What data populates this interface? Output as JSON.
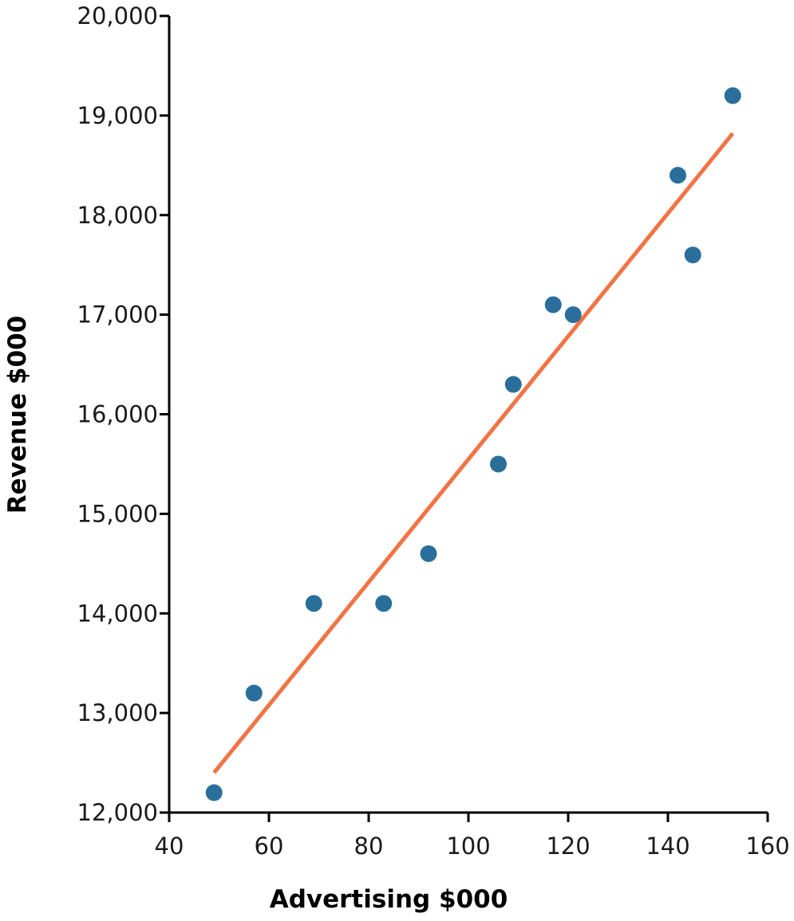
{
  "chart_data": {
    "type": "scatter",
    "xlabel": "Advertising $000",
    "ylabel": "Revenue $000",
    "xlim": [
      40,
      160
    ],
    "ylim": [
      12000,
      20000
    ],
    "x_ticks": [
      40,
      60,
      80,
      100,
      120,
      140,
      160
    ],
    "x_tick_labels": [
      "40",
      "60",
      "80",
      "100",
      "120",
      "140",
      "160"
    ],
    "y_ticks": [
      12000,
      13000,
      14000,
      15000,
      16000,
      17000,
      18000,
      19000,
      20000
    ],
    "y_tick_labels": [
      "12,000",
      "13,000",
      "14,000",
      "15,000",
      "16,000",
      "17,000",
      "18,000",
      "19,000",
      "20,000"
    ],
    "grid": false,
    "points": {
      "x": [
        49,
        57,
        69,
        83,
        92,
        106,
        109,
        117,
        121,
        142,
        145,
        153
      ],
      "y": [
        12200,
        13200,
        14100,
        14100,
        14600,
        15500,
        16300,
        17100,
        17000,
        18400,
        17600,
        19200
      ],
      "color": "#2a6f9b"
    },
    "trendline": {
      "x": [
        49,
        153
      ],
      "y": [
        12400,
        18820
      ],
      "color": "#f07445"
    }
  }
}
